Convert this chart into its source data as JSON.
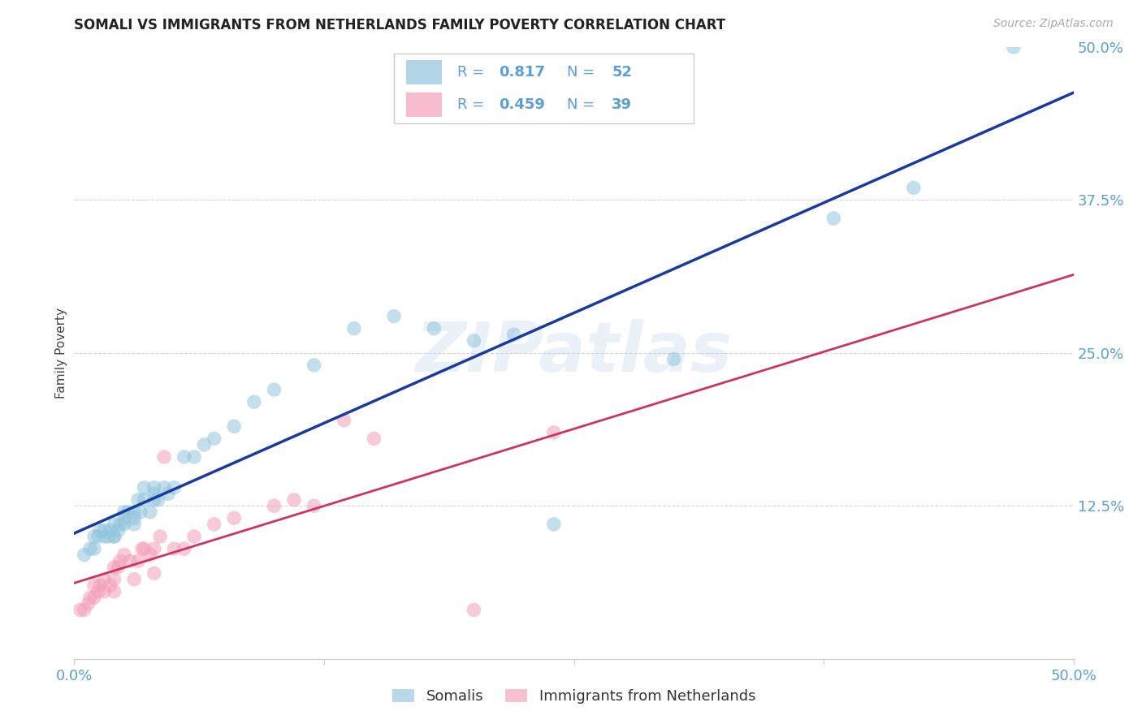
{
  "title": "SOMALI VS IMMIGRANTS FROM NETHERLANDS FAMILY POVERTY CORRELATION CHART",
  "source": "Source: ZipAtlas.com",
  "tick_color": "#5b9fd4",
  "ylabel": "Family Poverty",
  "xlim": [
    0,
    0.5
  ],
  "ylim": [
    0,
    0.5
  ],
  "watermark": "ZIPatlas",
  "somali_color": "#92c5de",
  "netherlands_color": "#f4a0b8",
  "blue_line_color": "#1a3a9c",
  "pink_line_color": "#cc3366",
  "grid_color": "#cccccc",
  "background_color": "#ffffff",
  "legend_text_color": "#5b9fd4",
  "somali_x": [
    0.005,
    0.008,
    0.01,
    0.01,
    0.012,
    0.013,
    0.015,
    0.015,
    0.017,
    0.018,
    0.02,
    0.02,
    0.02,
    0.022,
    0.023,
    0.025,
    0.025,
    0.025,
    0.027,
    0.03,
    0.03,
    0.03,
    0.032,
    0.033,
    0.035,
    0.035,
    0.038,
    0.04,
    0.04,
    0.04,
    0.042,
    0.045,
    0.047,
    0.05,
    0.055,
    0.06,
    0.065,
    0.07,
    0.08,
    0.09,
    0.1,
    0.12,
    0.14,
    0.16,
    0.18,
    0.2,
    0.22,
    0.24,
    0.3,
    0.38,
    0.42,
    0.47
  ],
  "somali_y": [
    0.085,
    0.09,
    0.09,
    0.1,
    0.1,
    0.105,
    0.1,
    0.105,
    0.1,
    0.105,
    0.1,
    0.1,
    0.11,
    0.105,
    0.11,
    0.11,
    0.115,
    0.12,
    0.12,
    0.11,
    0.115,
    0.12,
    0.13,
    0.12,
    0.13,
    0.14,
    0.12,
    0.13,
    0.135,
    0.14,
    0.13,
    0.14,
    0.135,
    0.14,
    0.165,
    0.165,
    0.175,
    0.18,
    0.19,
    0.21,
    0.22,
    0.24,
    0.27,
    0.28,
    0.27,
    0.26,
    0.265,
    0.11,
    0.245,
    0.36,
    0.385,
    0.5
  ],
  "netherlands_x": [
    0.003,
    0.005,
    0.007,
    0.008,
    0.01,
    0.01,
    0.012,
    0.013,
    0.015,
    0.015,
    0.018,
    0.02,
    0.02,
    0.02,
    0.022,
    0.023,
    0.025,
    0.028,
    0.03,
    0.032,
    0.034,
    0.035,
    0.038,
    0.04,
    0.04,
    0.043,
    0.045,
    0.05,
    0.055,
    0.06,
    0.07,
    0.08,
    0.1,
    0.11,
    0.12,
    0.135,
    0.15,
    0.2,
    0.24
  ],
  "netherlands_y": [
    0.04,
    0.04,
    0.045,
    0.05,
    0.05,
    0.06,
    0.055,
    0.06,
    0.055,
    0.065,
    0.06,
    0.055,
    0.065,
    0.075,
    0.075,
    0.08,
    0.085,
    0.08,
    0.065,
    0.08,
    0.09,
    0.09,
    0.085,
    0.07,
    0.09,
    0.1,
    0.165,
    0.09,
    0.09,
    0.1,
    0.11,
    0.115,
    0.125,
    0.13,
    0.125,
    0.195,
    0.18,
    0.04,
    0.185
  ]
}
